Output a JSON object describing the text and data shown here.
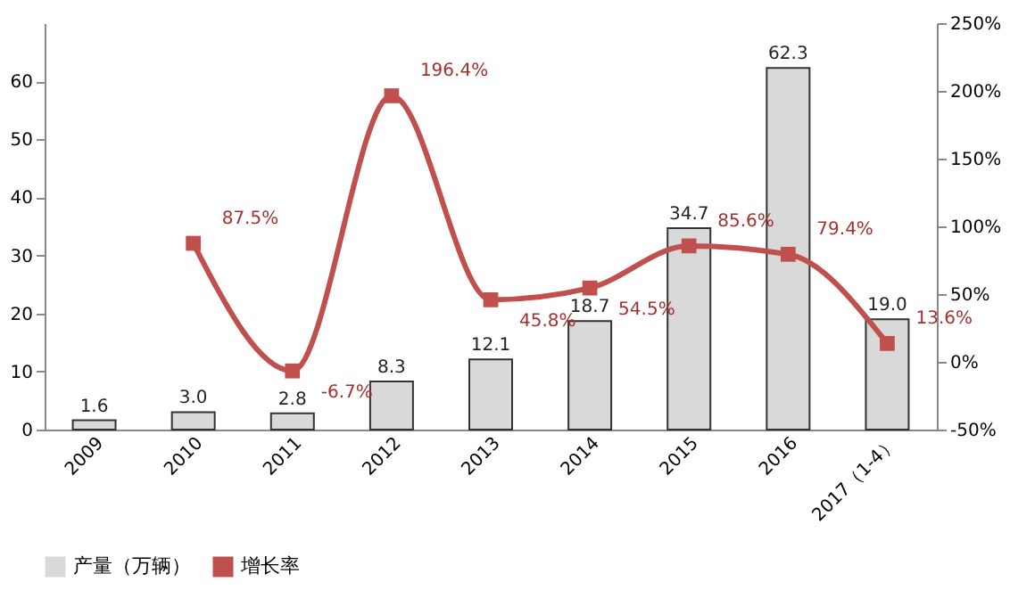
{
  "chart_data": {
    "type": "bar",
    "categories": [
      "2009",
      "2010",
      "2011",
      "2012",
      "2013",
      "2014",
      "2015",
      "2016",
      "2017（1-4）"
    ],
    "series": [
      {
        "name": "产量（万辆）",
        "color": "#d9d9d9",
        "axis": "y",
        "values": [
          1.6,
          3.0,
          2.8,
          8.3,
          12.1,
          18.7,
          34.7,
          62.3,
          19.0
        ],
        "value_labels": [
          "1.6",
          "3.0",
          "2.8",
          "8.3",
          "12.1",
          "18.7",
          "34.7",
          "62.3",
          "19.0"
        ]
      },
      {
        "name": "增长率",
        "type": "line",
        "color": "#c0504d",
        "axis": "y2",
        "marker": "square",
        "values": [
          null,
          87.5,
          -6.7,
          196.4,
          45.8,
          54.5,
          85.6,
          79.4,
          13.6
        ],
        "value_labels": [
          null,
          "87.5%",
          "-6.7%",
          "196.4%",
          "45.8%",
          "54.5%",
          "85.6%",
          "79.4%",
          "13.6%"
        ]
      }
    ],
    "ylim": [
      0,
      70
    ],
    "yticks": [
      0,
      10,
      20,
      30,
      40,
      50,
      60
    ],
    "y2lim": [
      -50,
      250
    ],
    "y2ticks": [
      {
        "value": -50,
        "label": "-50%"
      },
      {
        "value": 0,
        "label": "0%"
      },
      {
        "value": 50,
        "label": "50%"
      },
      {
        "value": 100,
        "label": "100%"
      },
      {
        "value": 150,
        "label": "150%"
      },
      {
        "value": 200,
        "label": "200%"
      },
      {
        "value": 250,
        "label": "250%"
      }
    ],
    "legend": "bottom",
    "grid": false
  }
}
